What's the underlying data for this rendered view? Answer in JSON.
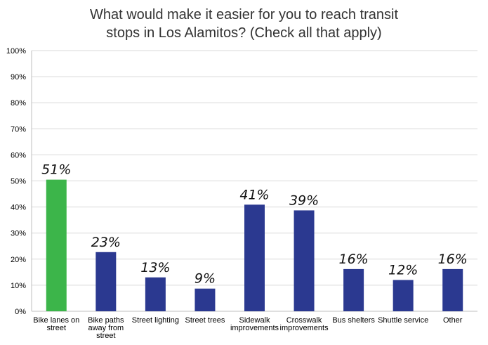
{
  "chart_data": {
    "type": "bar",
    "title_lines": [
      "What would make it easier for you to reach transit",
      "stops in Los Alamitos? (Check all that apply)"
    ],
    "categories": [
      [
        "Bike lanes on",
        "street"
      ],
      [
        "Bike paths",
        "away from",
        "street"
      ],
      [
        "Street lighting"
      ],
      [
        "Street trees"
      ],
      [
        "Sidewalk",
        "improvements"
      ],
      [
        "Crosswalk",
        "improvements"
      ],
      [
        "Bus shelters"
      ],
      [
        "Shuttle service"
      ],
      [
        "Other"
      ]
    ],
    "values": [
      50.5,
      22.7,
      13,
      8.7,
      40.9,
      38.7,
      16.2,
      12,
      16.2
    ],
    "data_labels": [
      "51%",
      "23%",
      "13%",
      "9%",
      "41%",
      "39%",
      "16%",
      "12%",
      "16%"
    ],
    "bar_colors": [
      "#3cb54a",
      "#2b3990",
      "#2b3990",
      "#2b3990",
      "#2b3990",
      "#2b3990",
      "#2b3990",
      "#2b3990",
      "#2b3990"
    ],
    "y_ticks": [
      "0%",
      "10%",
      "20%",
      "30%",
      "40%",
      "50%",
      "60%",
      "70%",
      "80%",
      "90%",
      "100%"
    ],
    "ylim": [
      0,
      100
    ],
    "grid": true,
    "legend": "none"
  }
}
